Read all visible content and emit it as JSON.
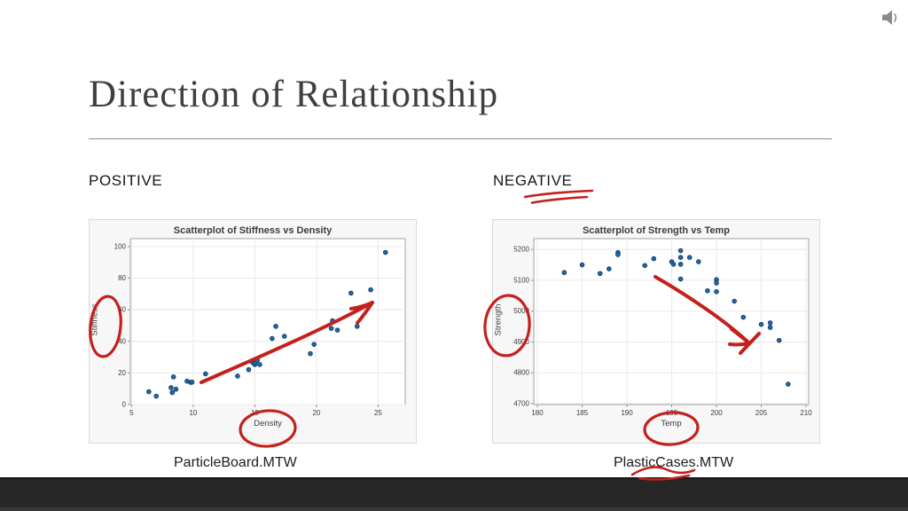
{
  "slide": {
    "title": "Direction of Relationship",
    "left_heading": "POSITIVE",
    "right_heading": "NEGATIVE",
    "left_caption": "ParticleBoard.MTW",
    "right_caption": "PlasticCases.MTW"
  },
  "icons": {
    "audio": "speaker-icon"
  },
  "colors": {
    "ink_red": "#c4201d",
    "dot_fill": "#2066a8",
    "dot_edge": "#0d3a61",
    "bottom_bar": "#272727",
    "title_text": "#3f3f3f"
  },
  "chart_data": [
    {
      "type": "scatter",
      "title": "Scatterplot of Stiffness vs Density",
      "xlabel": "Density",
      "ylabel": "Stiffness",
      "xlim": [
        4.9,
        27.2
      ],
      "ylim": [
        0,
        105
      ],
      "x_ticks": [
        5,
        10,
        15,
        20,
        25
      ],
      "y_ticks": [
        0,
        20,
        40,
        60,
        80,
        100
      ],
      "grid": true,
      "legend": "none",
      "points": [
        [
          6.4,
          8.1
        ],
        [
          7.0,
          5.3
        ],
        [
          8.2,
          10.7
        ],
        [
          8.3,
          7.6
        ],
        [
          8.4,
          17.5
        ],
        [
          8.6,
          9.7
        ],
        [
          9.5,
          14.8
        ],
        [
          9.8,
          14.0
        ],
        [
          9.9,
          14.2
        ],
        [
          11.0,
          19.4
        ],
        [
          13.6,
          18.0
        ],
        [
          14.5,
          22.1
        ],
        [
          14.8,
          26.8
        ],
        [
          15.0,
          25.3
        ],
        [
          15.0,
          26.2
        ],
        [
          15.2,
          28.0
        ],
        [
          15.4,
          25.3
        ],
        [
          16.4,
          41.8
        ],
        [
          16.7,
          49.5
        ],
        [
          17.4,
          43.2
        ],
        [
          19.5,
          32.2
        ],
        [
          19.8,
          38.1
        ],
        [
          21.2,
          48.2
        ],
        [
          21.3,
          53.0
        ],
        [
          21.7,
          47.1
        ],
        [
          22.8,
          70.5
        ],
        [
          23.3,
          49.5
        ],
        [
          24.4,
          72.6
        ],
        [
          25.6,
          96.3
        ]
      ]
    },
    {
      "type": "scatter",
      "title": "Scatterplot of Strength vs Temp",
      "xlabel": "Temp",
      "ylabel": "Strength",
      "xlim": [
        179.6,
        210.3
      ],
      "ylim": [
        4697,
        5235
      ],
      "x_ticks": [
        180,
        185,
        190,
        195,
        200,
        205,
        210
      ],
      "y_ticks": [
        4700,
        4800,
        4900,
        5000,
        5100,
        5200
      ],
      "grid": true,
      "legend": "none",
      "points": [
        [
          183,
          5125
        ],
        [
          185,
          5150
        ],
        [
          187,
          5122
        ],
        [
          188,
          5137
        ],
        [
          189,
          5190
        ],
        [
          189,
          5183
        ],
        [
          192,
          5148
        ],
        [
          193,
          5170
        ],
        [
          195,
          5160
        ],
        [
          195.2,
          5152
        ],
        [
          196,
          5196
        ],
        [
          196,
          5174
        ],
        [
          196,
          5152
        ],
        [
          196,
          5104
        ],
        [
          197,
          5174
        ],
        [
          198,
          5160
        ],
        [
          199,
          5066
        ],
        [
          200,
          5102
        ],
        [
          200,
          5091
        ],
        [
          200,
          5063
        ],
        [
          202,
          5032
        ],
        [
          203,
          4980
        ],
        [
          205,
          4957
        ],
        [
          206,
          4962
        ],
        [
          206,
          4947
        ],
        [
          207,
          4905
        ],
        [
          208,
          4763
        ]
      ]
    }
  ],
  "annotations": [
    {
      "id": "negative-underline",
      "type": "double-underline",
      "target": "NEGATIVE heading"
    },
    {
      "id": "stiffness-ellipse",
      "type": "ellipse",
      "target": "Stiffness y-axis label"
    },
    {
      "id": "density-ellipse",
      "type": "ellipse",
      "target": "Density x-axis label"
    },
    {
      "id": "strength-ellipse",
      "type": "ellipse",
      "target": "Strength y-axis label"
    },
    {
      "id": "temp-ellipse",
      "type": "ellipse",
      "target": "Temp x-axis label"
    },
    {
      "id": "positive-arrow",
      "type": "arrow-up-right",
      "target": "left scatterplot trend"
    },
    {
      "id": "negative-arrow",
      "type": "arrow-down-right",
      "target": "right scatterplot trend"
    },
    {
      "id": "plastic-underline",
      "type": "scribble-underline",
      "target": "PlasticCases.MTW caption"
    }
  ]
}
